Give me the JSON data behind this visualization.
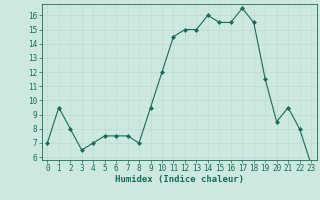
{
  "x": [
    0,
    1,
    2,
    3,
    4,
    5,
    6,
    7,
    8,
    9,
    10,
    11,
    12,
    13,
    14,
    15,
    16,
    17,
    18,
    19,
    20,
    21,
    22,
    23
  ],
  "y": [
    7,
    9.5,
    8,
    6.5,
    7,
    7.5,
    7.5,
    7.5,
    7,
    9.5,
    12,
    14.5,
    15,
    15,
    16,
    15.5,
    15.5,
    16.5,
    15.5,
    11.5,
    8.5,
    9.5,
    8,
    5.5
  ],
  "line_color": "#1a6b5a",
  "marker": "D",
  "marker_size": 2,
  "bg_color": "#cde8e0",
  "grid_color_major": "#b8d8d0",
  "grid_color_minor": "#c8e0d8",
  "xlabel": "Humidex (Indice chaleur)",
  "xlim": [
    -0.5,
    23.5
  ],
  "ylim": [
    5.8,
    16.8
  ],
  "yticks": [
    6,
    7,
    8,
    9,
    10,
    11,
    12,
    13,
    14,
    15,
    16
  ],
  "xticks": [
    0,
    1,
    2,
    3,
    4,
    5,
    6,
    7,
    8,
    9,
    10,
    11,
    12,
    13,
    14,
    15,
    16,
    17,
    18,
    19,
    20,
    21,
    22,
    23
  ],
  "tick_label_fontsize": 5.5,
  "xlabel_fontsize": 6.5,
  "tick_color": "#1a6b5a",
  "axis_color": "#1a6b5a",
  "linewidth": 0.8
}
